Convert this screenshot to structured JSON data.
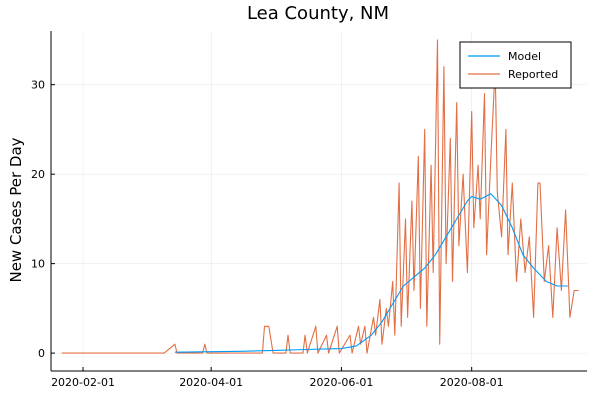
{
  "chart_data": {
    "type": "line",
    "title": "Lea County, NM",
    "xlabel": "",
    "ylabel": "New Cases Per Day",
    "x_axis": {
      "type": "date",
      "range": [
        "2020-01-17",
        "2020-09-24"
      ],
      "ticks": [
        "2020-02-01",
        "2020-04-01",
        "2020-06-01",
        "2020-08-01"
      ]
    },
    "y_axis": {
      "range": [
        -2,
        36
      ],
      "ticks": [
        0,
        10,
        20,
        30
      ]
    },
    "grid": true,
    "legend": {
      "position": "top-right",
      "entries": [
        "Model",
        "Reported"
      ]
    },
    "series": [
      {
        "name": "Model",
        "color": "#009AFA",
        "points": [
          [
            "2020-03-15",
            0.1
          ],
          [
            "2020-04-15",
            0.2
          ],
          [
            "2020-05-01",
            0.3
          ],
          [
            "2020-05-15",
            0.4
          ],
          [
            "2020-06-01",
            0.5
          ],
          [
            "2020-06-08",
            0.8
          ],
          [
            "2020-06-15",
            2.0
          ],
          [
            "2020-06-20",
            3.5
          ],
          [
            "2020-06-25",
            5.5
          ],
          [
            "2020-06-30",
            7.5
          ],
          [
            "2020-07-05",
            8.5
          ],
          [
            "2020-07-10",
            9.5
          ],
          [
            "2020-07-15",
            11.0
          ],
          [
            "2020-07-20",
            13.0
          ],
          [
            "2020-07-25",
            15.0
          ],
          [
            "2020-07-30",
            17.0
          ],
          [
            "2020-08-01",
            17.5
          ],
          [
            "2020-08-05",
            17.2
          ],
          [
            "2020-08-10",
            17.8
          ],
          [
            "2020-08-15",
            16.5
          ],
          [
            "2020-08-20",
            14.0
          ],
          [
            "2020-08-25",
            11.0
          ],
          [
            "2020-08-30",
            9.5
          ],
          [
            "2020-09-05",
            8.0
          ],
          [
            "2020-09-10",
            7.5
          ],
          [
            "2020-09-15",
            7.5
          ]
        ]
      },
      {
        "name": "Reported",
        "color": "#E26F46",
        "points": [
          [
            "2020-01-22",
            0
          ],
          [
            "2020-03-10",
            0
          ],
          [
            "2020-03-15",
            1
          ],
          [
            "2020-03-16",
            0
          ],
          [
            "2020-03-28",
            0
          ],
          [
            "2020-03-29",
            1
          ],
          [
            "2020-03-30",
            0
          ],
          [
            "2020-04-25",
            0
          ],
          [
            "2020-04-26",
            3
          ],
          [
            "2020-04-28",
            3
          ],
          [
            "2020-04-30",
            0
          ],
          [
            "2020-05-06",
            0
          ],
          [
            "2020-05-07",
            2
          ],
          [
            "2020-05-08",
            0
          ],
          [
            "2020-05-14",
            0
          ],
          [
            "2020-05-15",
            2
          ],
          [
            "2020-05-16",
            0
          ],
          [
            "2020-05-20",
            3
          ],
          [
            "2020-05-21",
            0
          ],
          [
            "2020-05-25",
            2
          ],
          [
            "2020-05-26",
            0
          ],
          [
            "2020-05-30",
            3
          ],
          [
            "2020-05-31",
            0
          ],
          [
            "2020-06-05",
            2
          ],
          [
            "2020-06-06",
            0
          ],
          [
            "2020-06-09",
            3
          ],
          [
            "2020-06-10",
            1
          ],
          [
            "2020-06-12",
            3
          ],
          [
            "2020-06-13",
            0
          ],
          [
            "2020-06-16",
            4
          ],
          [
            "2020-06-17",
            2
          ],
          [
            "2020-06-19",
            6
          ],
          [
            "2020-06-20",
            1
          ],
          [
            "2020-06-22",
            5
          ],
          [
            "2020-06-23",
            3
          ],
          [
            "2020-06-25",
            8
          ],
          [
            "2020-06-26",
            2
          ],
          [
            "2020-06-28",
            19
          ],
          [
            "2020-06-29",
            3
          ],
          [
            "2020-07-01",
            15
          ],
          [
            "2020-07-02",
            4
          ],
          [
            "2020-07-04",
            17
          ],
          [
            "2020-07-05",
            7
          ],
          [
            "2020-07-07",
            22
          ],
          [
            "2020-07-08",
            5
          ],
          [
            "2020-07-10",
            25
          ],
          [
            "2020-07-11",
            3
          ],
          [
            "2020-07-13",
            21
          ],
          [
            "2020-07-14",
            9
          ],
          [
            "2020-07-16",
            35
          ],
          [
            "2020-07-17",
            1
          ],
          [
            "2020-07-19",
            32
          ],
          [
            "2020-07-20",
            10
          ],
          [
            "2020-07-22",
            24
          ],
          [
            "2020-07-23",
            8
          ],
          [
            "2020-07-25",
            28
          ],
          [
            "2020-07-26",
            12
          ],
          [
            "2020-07-28",
            20
          ],
          [
            "2020-07-30",
            9
          ],
          [
            "2020-08-01",
            27
          ],
          [
            "2020-08-02",
            14
          ],
          [
            "2020-08-04",
            21
          ],
          [
            "2020-08-05",
            15
          ],
          [
            "2020-08-07",
            29
          ],
          [
            "2020-08-08",
            11
          ],
          [
            "2020-08-10",
            22
          ],
          [
            "2020-08-12",
            32
          ],
          [
            "2020-08-13",
            18
          ],
          [
            "2020-08-15",
            13
          ],
          [
            "2020-08-17",
            25
          ],
          [
            "2020-08-18",
            11
          ],
          [
            "2020-08-20",
            19
          ],
          [
            "2020-08-22",
            8
          ],
          [
            "2020-08-24",
            15
          ],
          [
            "2020-08-26",
            9
          ],
          [
            "2020-08-28",
            13
          ],
          [
            "2020-08-30",
            4
          ],
          [
            "2020-09-01",
            19
          ],
          [
            "2020-09-02",
            19
          ],
          [
            "2020-09-04",
            8
          ],
          [
            "2020-09-06",
            12
          ],
          [
            "2020-09-08",
            4
          ],
          [
            "2020-09-10",
            14
          ],
          [
            "2020-09-12",
            7
          ],
          [
            "2020-09-14",
            16
          ],
          [
            "2020-09-16",
            4
          ],
          [
            "2020-09-18",
            7
          ],
          [
            "2020-09-20",
            7
          ]
        ]
      }
    ]
  }
}
